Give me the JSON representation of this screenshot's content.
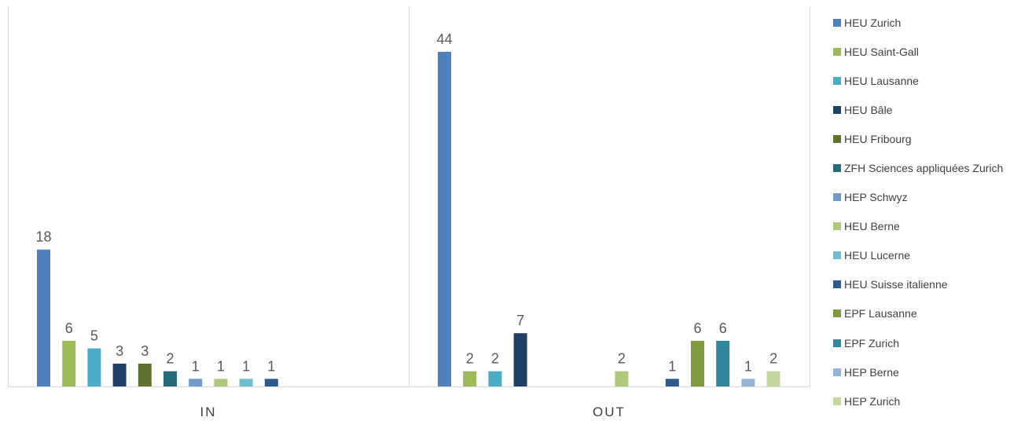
{
  "chart_data": {
    "type": "bar",
    "title": "",
    "xlabel": "",
    "ylabel": "",
    "categories": [
      "IN",
      "OUT"
    ],
    "ylim": [
      0,
      44
    ],
    "grid": false,
    "legend_position": "right",
    "series": [
      {
        "name": "HEU Zurich",
        "color": "#4F81BD",
        "values": [
          18,
          44
        ]
      },
      {
        "name": "HEU Saint-Gall",
        "color": "#9BBB59",
        "values": [
          6,
          2
        ]
      },
      {
        "name": "HEU Lausanne",
        "color": "#4BACC6",
        "values": [
          5,
          2
        ]
      },
      {
        "name": "HEU Bâle",
        "color": "#1F3F66",
        "values": [
          3,
          7
        ]
      },
      {
        "name": "HEU Fribourg",
        "color": "#5D732F",
        "values": [
          3,
          null
        ]
      },
      {
        "name": "ZFH Sciences appliquées Zurich",
        "color": "#276A7C",
        "values": [
          2,
          null
        ]
      },
      {
        "name": "HEP Schwyz",
        "color": "#729ACA",
        "values": [
          1,
          null
        ]
      },
      {
        "name": "HEU Berne",
        "color": "#AFC97A",
        "values": [
          1,
          2
        ]
      },
      {
        "name": "HEU Lucerne",
        "color": "#6FBDD1",
        "values": [
          1,
          null
        ]
      },
      {
        "name": "HEU Suisse italienne",
        "color": "#2C5A8E",
        "values": [
          1,
          1
        ]
      },
      {
        "name": "EPF Lausanne",
        "color": "#7F9A3E",
        "values": [
          null,
          6
        ]
      },
      {
        "name": "EPF Zurich",
        "color": "#31859C",
        "values": [
          null,
          6
        ]
      },
      {
        "name": "HEP Berne",
        "color": "#95B3D7",
        "values": [
          null,
          1
        ]
      },
      {
        "name": "HEP Zurich",
        "color": "#C3D69B",
        "values": [
          null,
          2
        ]
      }
    ]
  }
}
